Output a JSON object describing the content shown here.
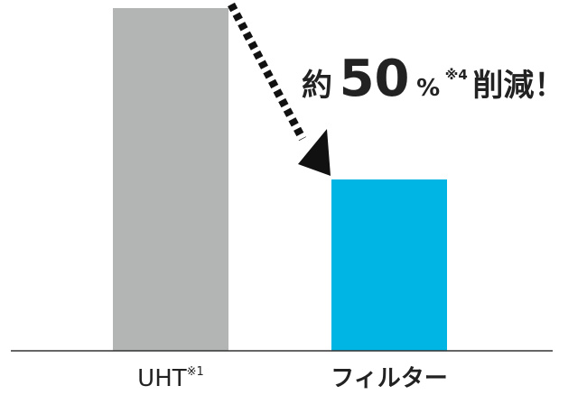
{
  "chart_data": {
    "type": "bar",
    "categories": [
      "UHT",
      "フィルター"
    ],
    "category_notes": [
      "※1",
      ""
    ],
    "values": [
      100,
      50
    ],
    "colors": [
      "#b3b4b4",
      "#00b4e4"
    ],
    "ylim": [
      0,
      100
    ],
    "grid": false,
    "annotation": {
      "prefix": "約",
      "number": "50",
      "unit": "%",
      "note": "※4",
      "suffix": "削減！"
    }
  }
}
